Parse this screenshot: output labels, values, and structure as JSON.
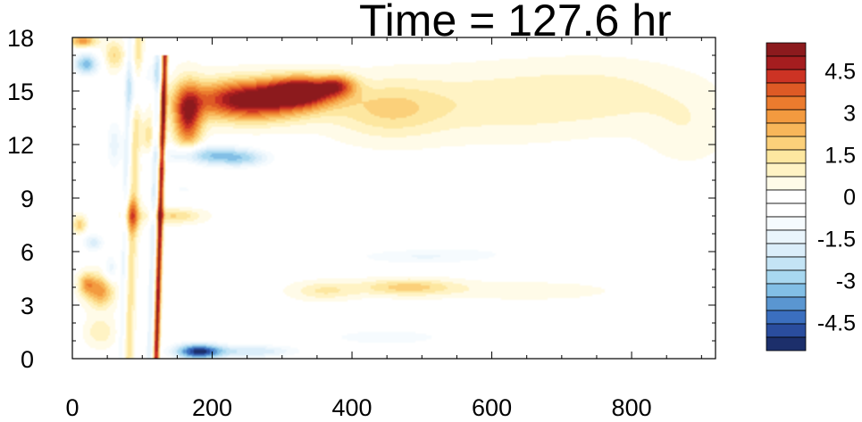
{
  "chart_data": {
    "type": "heatmap",
    "title": "Time = 127.6 hr",
    "xlabel": "",
    "ylabel": "",
    "xlim": [
      0,
      920
    ],
    "ylim": [
      0,
      18
    ],
    "x_ticks": [
      "0",
      "200",
      "400",
      "600",
      "800"
    ],
    "y_ticks": [
      "0",
      "3",
      "6",
      "9",
      "12",
      "15",
      "18"
    ],
    "x_tick_values": [
      0,
      200,
      400,
      600,
      800
    ],
    "y_tick_values": [
      0,
      3,
      6,
      9,
      12,
      15,
      18
    ],
    "grid": false,
    "colorbar": {
      "min": -5.5,
      "max": 5.5,
      "step": 0.5,
      "labels": [
        "4.5",
        "3",
        "1.5",
        "0",
        "-1.5",
        "-3",
        "-4.5"
      ],
      "label_values": [
        4.5,
        3,
        1.5,
        0,
        -1.5,
        -3,
        -4.5
      ],
      "colors": [
        "#1c2f6b",
        "#2a4d9e",
        "#3b6fbf",
        "#5a96d1",
        "#82bfe6",
        "#a8d8f0",
        "#c4e4f5",
        "#dbeefa",
        "#eaf5fc",
        "#f6fbfe",
        "#ffffff",
        "#ffffff",
        "#fffbe8",
        "#fff3c4",
        "#fde7a0",
        "#fbd07a",
        "#f8b65a",
        "#f39a3f",
        "#eb7b2e",
        "#de5a25",
        "#cc3324",
        "#a51d1f",
        "#8c1a1d"
      ]
    },
    "features": [
      {
        "x": 255,
        "y": 14.5,
        "value": 6.0,
        "sx": 85,
        "sy": 1.1
      },
      {
        "x": 330,
        "y": 15.0,
        "value": 5.0,
        "sx": 45,
        "sy": 0.8
      },
      {
        "x": 165,
        "y": 13.5,
        "value": 4.5,
        "sx": 20,
        "sy": 1.8
      },
      {
        "x": 380,
        "y": 15.3,
        "value": 3.2,
        "sx": 25,
        "sy": 0.6
      },
      {
        "x": 450,
        "y": 14.0,
        "value": 1.7,
        "sx": 80,
        "sy": 1.6
      },
      {
        "x": 600,
        "y": 14.3,
        "value": 1.0,
        "sx": 130,
        "sy": 1.9
      },
      {
        "x": 760,
        "y": 14.8,
        "value": 0.9,
        "sx": 120,
        "sy": 1.8
      },
      {
        "x": 880,
        "y": 13.0,
        "value": 0.6,
        "sx": 60,
        "sy": 2.0
      },
      {
        "x": 190,
        "y": 11.4,
        "value": -3.0,
        "sx": 60,
        "sy": 0.55
      },
      {
        "x": 245,
        "y": 11.2,
        "value": -2.0,
        "sx": 40,
        "sy": 0.5
      },
      {
        "x": 180,
        "y": 0.4,
        "value": -5.2,
        "sx": 35,
        "sy": 0.45
      },
      {
        "x": 260,
        "y": 0.4,
        "value": -2.2,
        "sx": 60,
        "sy": 0.35
      },
      {
        "x": 450,
        "y": 1.2,
        "value": -1.0,
        "sx": 120,
        "sy": 0.6
      },
      {
        "x": 480,
        "y": 4.0,
        "value": 2.0,
        "sx": 70,
        "sy": 0.45
      },
      {
        "x": 360,
        "y": 3.8,
        "value": 1.3,
        "sx": 45,
        "sy": 0.5
      },
      {
        "x": 650,
        "y": 3.8,
        "value": 0.6,
        "sx": 120,
        "sy": 0.5
      },
      {
        "x": 500,
        "y": 5.7,
        "value": -1.2,
        "sx": 110,
        "sy": 0.45
      },
      {
        "x": 700,
        "y": 6.2,
        "value": -0.6,
        "sx": 180,
        "sy": 0.6
      },
      {
        "x": 145,
        "y": 8.0,
        "value": 1.8,
        "sx": 40,
        "sy": 0.4
      },
      {
        "x": 85,
        "y": 8.0,
        "value": 2.8,
        "sx": 12,
        "sy": 0.9
      },
      {
        "x": 40,
        "y": 3.8,
        "value": 3.0,
        "sx": 20,
        "sy": 0.9
      },
      {
        "x": 20,
        "y": 4.2,
        "value": 2.2,
        "sx": 12,
        "sy": 0.6
      },
      {
        "x": 10,
        "y": 7.5,
        "value": 2.0,
        "sx": 10,
        "sy": 0.5
      },
      {
        "x": 30,
        "y": 6.5,
        "value": -2.0,
        "sx": 15,
        "sy": 0.5
      },
      {
        "x": 20,
        "y": 16.5,
        "value": -3.5,
        "sx": 18,
        "sy": 0.6
      },
      {
        "x": 15,
        "y": 17.8,
        "value": 3.0,
        "sx": 20,
        "sy": 0.35
      },
      {
        "x": 60,
        "y": 17.0,
        "value": 1.8,
        "sx": 15,
        "sy": 0.8
      },
      {
        "x": 90,
        "y": 15.0,
        "value": -2.0,
        "sx": 15,
        "sy": 1.2
      },
      {
        "x": 60,
        "y": 12.0,
        "value": -1.5,
        "sx": 12,
        "sy": 1.5
      },
      {
        "x": 110,
        "y": 12.5,
        "value": 1.5,
        "sx": 12,
        "sy": 1.2
      },
      {
        "x": 120,
        "y": 16.0,
        "value": -1.2,
        "sx": 15,
        "sy": 0.8
      },
      {
        "x": 300,
        "y": 8.0,
        "value": -0.5,
        "sx": 60,
        "sy": 0.6
      },
      {
        "x": 160,
        "y": 9.5,
        "value": -0.8,
        "sx": 40,
        "sy": 0.7
      },
      {
        "x": 40,
        "y": 1.5,
        "value": 1.2,
        "sx": 20,
        "sy": 0.8
      },
      {
        "x": 55,
        "y": 5.0,
        "value": -1.6,
        "sx": 10,
        "sy": 0.8
      }
    ],
    "ridges": [
      {
        "x0": 120,
        "y0": 0,
        "x1": 132,
        "y1": 16.5,
        "value": 5.5,
        "width": 4
      },
      {
        "x0": 110,
        "y0": 0,
        "x1": 122,
        "y1": 16.5,
        "value": -1.6,
        "width": 5
      },
      {
        "x0": 80,
        "y0": 0,
        "x1": 95,
        "y1": 17.5,
        "value": 1.5,
        "width": 7
      },
      {
        "x0": 70,
        "y0": 0,
        "x1": 82,
        "y1": 17.5,
        "value": -1.4,
        "width": 5
      }
    ]
  }
}
